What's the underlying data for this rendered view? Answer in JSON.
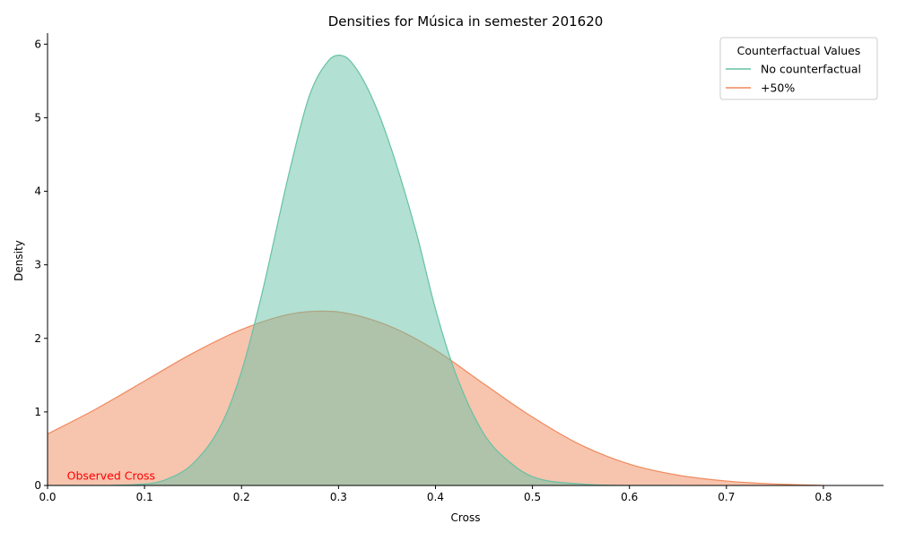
{
  "chart_data": {
    "type": "area",
    "title": "Densities for Música in semester 201620",
    "xlabel": "Cross",
    "ylabel": "Density",
    "xlim": [
      0.0,
      0.862
    ],
    "ylim": [
      0,
      6.15
    ],
    "xticks": [
      0.0,
      0.1,
      0.2,
      0.3,
      0.4,
      0.5,
      0.6,
      0.7,
      0.8
    ],
    "xtick_labels": [
      "0.0",
      "0.1",
      "0.2",
      "0.3",
      "0.4",
      "0.5",
      "0.6",
      "0.7",
      "0.8"
    ],
    "yticks": [
      0,
      1,
      2,
      3,
      4,
      5,
      6
    ],
    "ytick_labels": [
      "0",
      "1",
      "2",
      "3",
      "4",
      "5",
      "6"
    ],
    "grid": false,
    "legend": {
      "title": "Counterfactual Values",
      "placement": "top-right"
    },
    "annotation": {
      "text": "Observed Cross",
      "x": 0.02,
      "y": 0.08,
      "color": "#ff0000"
    },
    "series": [
      {
        "name": "+50%",
        "line_color": "#f08a5d",
        "fill_color": "#fbbfa5",
        "x": [
          0.0,
          0.05,
          0.1,
          0.15,
          0.2,
          0.25,
          0.283,
          0.3,
          0.35,
          0.4,
          0.45,
          0.5,
          0.55,
          0.6,
          0.65,
          0.7,
          0.75,
          0.8
        ],
        "y": [
          0.7,
          1.04,
          1.42,
          1.8,
          2.12,
          2.33,
          2.37,
          2.36,
          2.18,
          1.84,
          1.38,
          0.93,
          0.55,
          0.29,
          0.14,
          0.06,
          0.02,
          0.0
        ]
      },
      {
        "name": "No counterfactual",
        "line_color": "#66c2a5",
        "fill_color": "#b2e2d3",
        "x": [
          0.0,
          0.05,
          0.1,
          0.12,
          0.15,
          0.18,
          0.2,
          0.22,
          0.25,
          0.27,
          0.29,
          0.3,
          0.31,
          0.33,
          0.35,
          0.38,
          0.4,
          0.42,
          0.45,
          0.48,
          0.5,
          0.55,
          0.6,
          0.65
        ],
        "y": [
          0.0,
          0.0,
          0.02,
          0.07,
          0.3,
          0.85,
          1.55,
          2.55,
          4.3,
          5.3,
          5.78,
          5.85,
          5.8,
          5.4,
          4.75,
          3.45,
          2.4,
          1.55,
          0.7,
          0.28,
          0.12,
          0.02,
          0.0,
          0.0
        ]
      }
    ]
  }
}
